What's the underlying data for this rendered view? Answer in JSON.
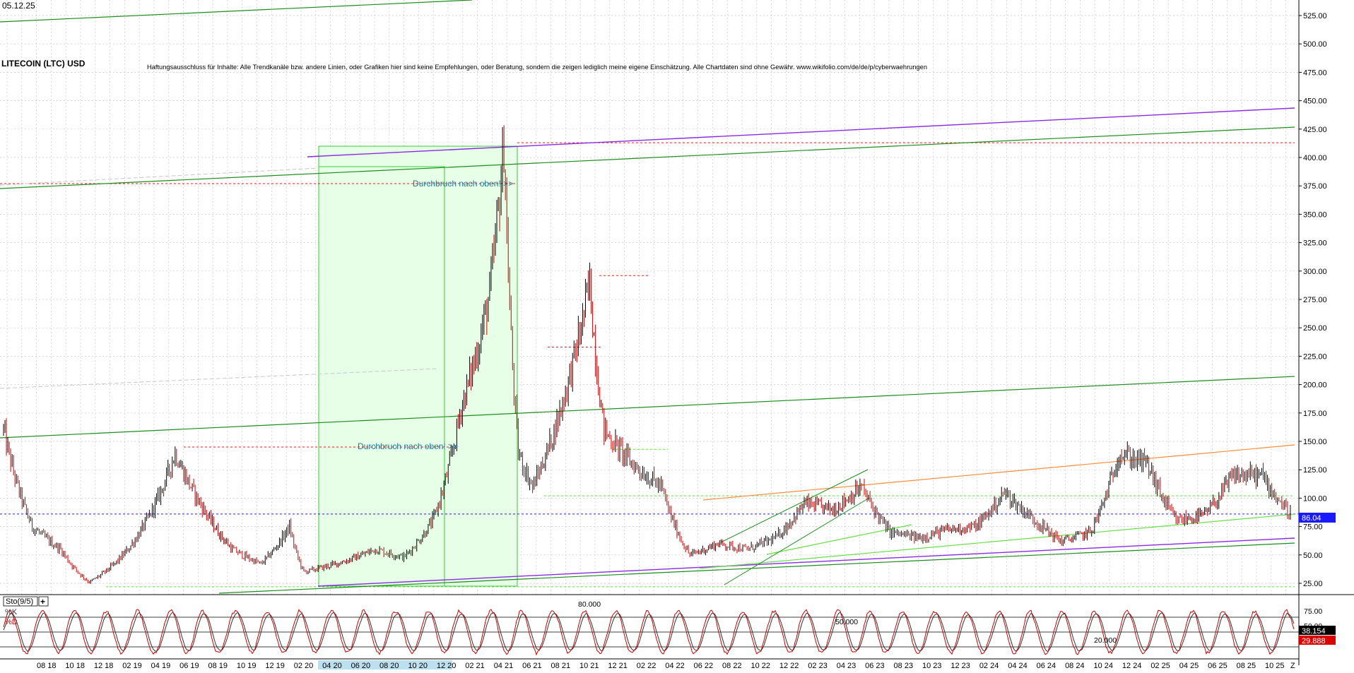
{
  "header": {
    "date": "05.12.25",
    "title": "LITECOIN (LTC) USD",
    "disclaimer": "Haftungsausschluss für Inhalte: Alle Trendkanäle bzw. andere Linien, oder Grafiken hier sind keine Empfehlungen, oder Beratung, sondern die zeigen lediglich meine eigene Einschätzung. Alle Chartdaten sind ohne Gewähr. www.wikifolio.com/de/de/p/cyberwaehrungen"
  },
  "colors": {
    "background": "#ffffff",
    "grid": "#c8c8c8",
    "price_up": "#000000",
    "price_down": "#cc0000",
    "trend_green": "#1e8c1e",
    "trend_purple": "#8a2be2",
    "trend_orange": "#ff8c3c",
    "light_green": "#66dd44",
    "red_dashed": "#dd2222",
    "blue_dashed": "#2222dd",
    "box_fill": "#e6ffe6",
    "box_stroke": "#33cc33",
    "annotation": "#1a7a9a",
    "last_price_bg": "#1a1aff",
    "stoch_k": "#cc0000",
    "stoch_d": "#333333",
    "axis_highlight": "#bde0f0"
  },
  "annotations": [
    {
      "id": "breakout-upper",
      "text": "Durchbruch nach oben! >>"
    },
    {
      "id": "breakout-lower",
      "text": "Durchbruch nach oben! >>"
    }
  ],
  "last_price": {
    "label": "86.04",
    "value": 86.04
  },
  "stochastic": {
    "title": "Sto(9/5)",
    "add_symbol": "+",
    "k_label": "%K",
    "d_label": "%D",
    "level_80": "80.000",
    "level_50": "50.000",
    "level_20": "20.000",
    "k_value": "38.154",
    "d_value": "29.888",
    "axis_labels": [
      "75.00",
      "50.00"
    ]
  },
  "chart_data": {
    "type": "candlestick",
    "title": "LITECOIN (LTC) USD",
    "ylim": [
      15,
      540
    ],
    "y_ticks": [
      "25.000",
      "50.000",
      "75.000",
      "100.000",
      "125.000",
      "150.000",
      "175.000",
      "200.000",
      "225.000",
      "250.000",
      "275.000",
      "300.000",
      "325.000",
      "350.000",
      "375.000",
      "400.000",
      "425.000",
      "450.000",
      "475.000",
      "500.000",
      "525.000"
    ],
    "x_ticks": [
      "08 18",
      "10 18",
      "12 18",
      "02 19",
      "04 19",
      "06 19",
      "08 19",
      "10 19",
      "12 19",
      "02 20",
      "04 20",
      "06 20",
      "08 20",
      "10 20",
      "12 20",
      "02 21",
      "04 21",
      "06 21",
      "08 21",
      "10 21",
      "12 21",
      "02 22",
      "04 22",
      "06 22",
      "08 22",
      "10 22",
      "12 22",
      "02 23",
      "04 23",
      "06 23",
      "08 23",
      "10 23",
      "12 23",
      "02 24",
      "04 24",
      "06 24",
      "08 24",
      "10 24",
      "12 24",
      "02 25",
      "04 25",
      "06 25",
      "08 25",
      "10 25"
    ],
    "x_end_marker": "Z",
    "grid": true,
    "series": [
      {
        "values": [
          {
            "date": "2018-06",
            "price": 160
          },
          {
            "date": "2018-08",
            "price": 75
          },
          {
            "date": "2018-10",
            "price": 55
          },
          {
            "date": "2018-12",
            "price": 26
          },
          {
            "date": "2019-02",
            "price": 45
          },
          {
            "date": "2019-04",
            "price": 80
          },
          {
            "date": "2019-06",
            "price": 140
          },
          {
            "date": "2019-08",
            "price": 90
          },
          {
            "date": "2019-10",
            "price": 55
          },
          {
            "date": "2019-12",
            "price": 42
          },
          {
            "date": "2020-02",
            "price": 75
          },
          {
            "date": "2020-03",
            "price": 35
          },
          {
            "date": "2020-06",
            "price": 45
          },
          {
            "date": "2020-08",
            "price": 55
          },
          {
            "date": "2020-10",
            "price": 48
          },
          {
            "date": "2020-12",
            "price": 80
          },
          {
            "date": "2021-02",
            "price": 180
          },
          {
            "date": "2021-04",
            "price": 280
          },
          {
            "date": "2021-05",
            "price": 413
          },
          {
            "date": "2021-06",
            "price": 140
          },
          {
            "date": "2021-07",
            "price": 110
          },
          {
            "date": "2021-09",
            "price": 180
          },
          {
            "date": "2021-11",
            "price": 290
          },
          {
            "date": "2021-12",
            "price": 160
          },
          {
            "date": "2022-02",
            "price": 130
          },
          {
            "date": "2022-04",
            "price": 110
          },
          {
            "date": "2022-06",
            "price": 50
          },
          {
            "date": "2022-08",
            "price": 60
          },
          {
            "date": "2022-10",
            "price": 55
          },
          {
            "date": "2022-12",
            "price": 65
          },
          {
            "date": "2023-02",
            "price": 95
          },
          {
            "date": "2023-04",
            "price": 90
          },
          {
            "date": "2023-06",
            "price": 110
          },
          {
            "date": "2023-08",
            "price": 70
          },
          {
            "date": "2023-10",
            "price": 65
          },
          {
            "date": "2023-12",
            "price": 72
          },
          {
            "date": "2024-02",
            "price": 75
          },
          {
            "date": "2024-04",
            "price": 105
          },
          {
            "date": "2024-06",
            "price": 82
          },
          {
            "date": "2024-08",
            "price": 62
          },
          {
            "date": "2024-10",
            "price": 70
          },
          {
            "date": "2024-12",
            "price": 140
          },
          {
            "date": "2025-02",
            "price": 130
          },
          {
            "date": "2025-04",
            "price": 80
          },
          {
            "date": "2025-06",
            "price": 85
          },
          {
            "date": "2025-08",
            "price": 120
          },
          {
            "date": "2025-10",
            "price": 120
          },
          {
            "date": "2025-12",
            "price": 86.04
          }
        ]
      }
    ],
    "horizontal_levels": [
      {
        "value": 413,
        "style": "red-dashed"
      },
      {
        "value": 377,
        "style": "red-dashed"
      },
      {
        "value": 296,
        "style": "red-dashed"
      },
      {
        "value": 233,
        "style": "red-dashed"
      },
      {
        "value": 145,
        "style": "red-dashed"
      },
      {
        "value": 143,
        "style": "green-dashed"
      },
      {
        "value": 102,
        "style": "green-dashed"
      },
      {
        "value": 86.04,
        "style": "blue-dashed"
      },
      {
        "value": 22,
        "style": "green-dashed"
      }
    ]
  }
}
